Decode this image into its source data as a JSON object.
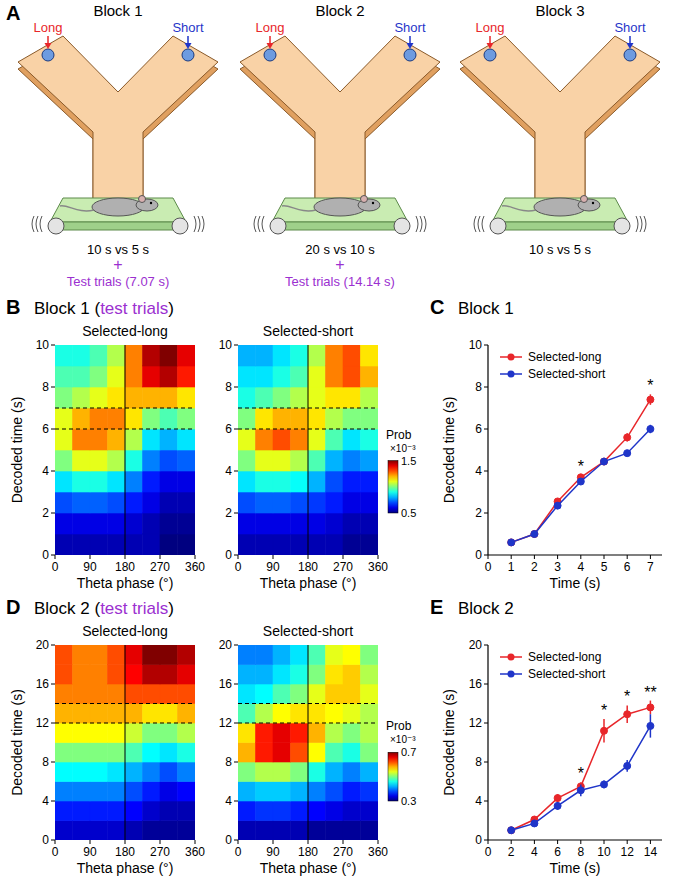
{
  "panels": [
    {
      "label": "A"
    },
    {
      "label": "B",
      "title_parts": [
        "Block 1 (",
        "test trials",
        ")"
      ]
    },
    {
      "label": "C",
      "title_parts": [
        "Block 1"
      ]
    },
    {
      "label": "D",
      "title_parts": [
        "Block 2 (",
        "test trials",
        ")"
      ]
    },
    {
      "label": "E",
      "title_parts": [
        "Block 2"
      ]
    }
  ],
  "diagram": {
    "blocks": [
      {
        "title": "Block 1",
        "left_label": "Long",
        "right_label": "Short",
        "condition": "10 s vs 5 s",
        "plus": "+",
        "test": "Test trials (7.07 s)"
      },
      {
        "title": "Block 2",
        "left_label": "Long",
        "right_label": "Short",
        "condition": "20 s vs 10 s",
        "plus": "+",
        "test": "Test trials (14.14 s)"
      },
      {
        "title": "Block 3",
        "left_label": "Long",
        "right_label": "Short",
        "condition": "10 s vs 5 s"
      }
    ]
  },
  "chart_data": [
    {
      "type": "heatmap",
      "title": "Selected-long",
      "xlabel": "Theta phase (°)",
      "ylabel": "Decoded time (s)",
      "x_bins": [
        0,
        45,
        90,
        135,
        180,
        225,
        270,
        315,
        360
      ],
      "y_bins": [
        0,
        1,
        2,
        3,
        4,
        5,
        6,
        7,
        8,
        9,
        10
      ],
      "xlim": [
        0,
        360
      ],
      "xticks": [
        0,
        90,
        180,
        270,
        360
      ],
      "ylim": [
        0,
        10
      ],
      "yticks": [
        0,
        2,
        4,
        6,
        8,
        10
      ],
      "zlim": [
        0.5,
        1.5
      ],
      "hlines": [
        6,
        7
      ],
      "vlines": [
        180
      ],
      "cells": [
        [
          0.55,
          0.55,
          0.55,
          0.55,
          0.55,
          0.55,
          0.5,
          0.5
        ],
        [
          0.6,
          0.6,
          0.6,
          0.6,
          0.58,
          0.55,
          0.52,
          0.52
        ],
        [
          0.7,
          0.72,
          0.72,
          0.7,
          0.65,
          0.6,
          0.55,
          0.55
        ],
        [
          0.85,
          0.9,
          0.9,
          0.85,
          0.75,
          0.65,
          0.6,
          0.6
        ],
        [
          1.0,
          1.1,
          1.1,
          1.05,
          0.9,
          0.75,
          0.7,
          0.72
        ],
        [
          1.1,
          1.25,
          1.25,
          1.2,
          1.05,
          0.85,
          0.8,
          0.85
        ],
        [
          1.1,
          1.2,
          1.25,
          1.25,
          1.15,
          1.0,
          0.95,
          1.0
        ],
        [
          1.0,
          1.05,
          1.1,
          1.15,
          1.2,
          1.2,
          1.2,
          1.15
        ],
        [
          0.95,
          0.95,
          1.0,
          1.1,
          1.25,
          1.4,
          1.45,
          1.35
        ],
        [
          0.9,
          0.9,
          0.95,
          1.05,
          1.25,
          1.45,
          1.5,
          1.4
        ]
      ]
    },
    {
      "type": "heatmap",
      "title": "Selected-short",
      "xlabel": "Theta phase (°)",
      "x_bins": [
        0,
        45,
        90,
        135,
        180,
        225,
        270,
        315,
        360
      ],
      "y_bins": [
        0,
        1,
        2,
        3,
        4,
        5,
        6,
        7,
        8,
        9,
        10
      ],
      "xlim": [
        0,
        360
      ],
      "xticks": [
        0,
        90,
        180,
        270,
        360
      ],
      "ylim": [
        0,
        10
      ],
      "yticks": [
        0,
        2,
        4,
        6,
        8,
        10
      ],
      "zlim": [
        0.5,
        1.5
      ],
      "colorbar": {
        "label": "Prob",
        "exponent": "×10⁻³",
        "ticks": [
          0.5,
          1.5
        ]
      },
      "hlines": [
        6,
        7
      ],
      "vlines": [
        180
      ],
      "cells": [
        [
          0.55,
          0.55,
          0.55,
          0.55,
          0.55,
          0.55,
          0.52,
          0.52
        ],
        [
          0.6,
          0.6,
          0.6,
          0.6,
          0.6,
          0.58,
          0.55,
          0.55
        ],
        [
          0.7,
          0.72,
          0.72,
          0.7,
          0.68,
          0.65,
          0.6,
          0.6
        ],
        [
          0.85,
          0.9,
          0.9,
          0.88,
          0.8,
          0.7,
          0.65,
          0.65
        ],
        [
          1.0,
          1.1,
          1.1,
          1.05,
          0.95,
          0.8,
          0.75,
          0.78
        ],
        [
          1.1,
          1.25,
          1.3,
          1.25,
          1.1,
          0.95,
          0.85,
          0.9
        ],
        [
          1.0,
          1.15,
          1.2,
          1.2,
          1.15,
          1.05,
          1.0,
          1.0
        ],
        [
          0.9,
          0.95,
          1.0,
          1.05,
          1.1,
          1.15,
          1.15,
          1.05
        ],
        [
          0.85,
          0.85,
          0.9,
          0.95,
          1.1,
          1.25,
          1.3,
          1.2
        ],
        [
          0.8,
          0.8,
          0.85,
          0.9,
          1.05,
          1.25,
          1.3,
          1.15
        ]
      ]
    },
    {
      "type": "line",
      "xlabel": "Time (s)",
      "ylabel": "Decoded time (s)",
      "x": [
        1,
        2,
        3,
        4,
        5,
        6,
        7
      ],
      "xlim": [
        0,
        7.5
      ],
      "xticks": [
        0,
        1,
        2,
        3,
        4,
        5,
        6,
        7
      ],
      "ylim": [
        0,
        10
      ],
      "yticks": [
        0,
        2,
        4,
        6,
        8,
        10
      ],
      "legend": "upper left",
      "series": [
        {
          "name": "Selected-long",
          "color": "#e8262a",
          "marker": "circle",
          "values": [
            0.6,
            1.0,
            2.55,
            3.7,
            4.45,
            5.6,
            7.4
          ],
          "error": [
            0.05,
            0.08,
            0.12,
            0.1,
            0.12,
            0.2,
            0.25
          ]
        },
        {
          "name": "Selected-short",
          "color": "#1f35c9",
          "marker": "circle",
          "values": [
            0.6,
            1.0,
            2.35,
            3.5,
            4.45,
            4.85,
            6.0
          ],
          "error": [
            0.05,
            0.08,
            0.12,
            0.1,
            0.1,
            0.1,
            0.2
          ]
        }
      ],
      "annotations": [
        {
          "x": 4,
          "text": "*"
        },
        {
          "x": 7,
          "text": "*"
        }
      ]
    },
    {
      "type": "heatmap",
      "title": "Selected-long",
      "xlabel": "Theta phase (°)",
      "ylabel": "Decoded time (s)",
      "x_bins": [
        0,
        45,
        90,
        135,
        180,
        225,
        270,
        315,
        360
      ],
      "y_bins": [
        0,
        2,
        4,
        6,
        8,
        10,
        12,
        14,
        16,
        18,
        20
      ],
      "xlim": [
        0,
        360
      ],
      "xticks": [
        0,
        90,
        180,
        270,
        360
      ],
      "ylim": [
        0,
        20
      ],
      "yticks": [
        0,
        4,
        8,
        12,
        16,
        20
      ],
      "zlim": [
        0.3,
        0.7
      ],
      "hlines": [
        12,
        14
      ],
      "vlines": [
        180
      ],
      "cells": [
        [
          0.33,
          0.33,
          0.33,
          0.33,
          0.32,
          0.31,
          0.31,
          0.31
        ],
        [
          0.36,
          0.36,
          0.36,
          0.36,
          0.35,
          0.33,
          0.32,
          0.32
        ],
        [
          0.4,
          0.4,
          0.4,
          0.4,
          0.38,
          0.36,
          0.34,
          0.35
        ],
        [
          0.45,
          0.45,
          0.45,
          0.44,
          0.42,
          0.4,
          0.38,
          0.4
        ],
        [
          0.5,
          0.5,
          0.5,
          0.5,
          0.48,
          0.45,
          0.44,
          0.46
        ],
        [
          0.55,
          0.55,
          0.55,
          0.55,
          0.53,
          0.5,
          0.5,
          0.52
        ],
        [
          0.58,
          0.58,
          0.58,
          0.58,
          0.58,
          0.56,
          0.56,
          0.58
        ],
        [
          0.6,
          0.6,
          0.6,
          0.6,
          0.62,
          0.62,
          0.62,
          0.62
        ],
        [
          0.62,
          0.6,
          0.6,
          0.62,
          0.65,
          0.68,
          0.68,
          0.66
        ],
        [
          0.62,
          0.6,
          0.6,
          0.62,
          0.66,
          0.7,
          0.7,
          0.68
        ]
      ]
    },
    {
      "type": "heatmap",
      "title": "Selected-short",
      "xlabel": "Theta phase (°)",
      "x_bins": [
        0,
        45,
        90,
        135,
        180,
        225,
        270,
        315,
        360
      ],
      "y_bins": [
        0,
        2,
        4,
        6,
        8,
        10,
        12,
        14,
        16,
        18,
        20
      ],
      "xlim": [
        0,
        360
      ],
      "xticks": [
        0,
        90,
        180,
        270,
        360
      ],
      "ylim": [
        0,
        20
      ],
      "yticks": [
        0,
        4,
        8,
        12,
        16,
        20
      ],
      "zlim": [
        0.3,
        0.7
      ],
      "colorbar": {
        "label": "Prob",
        "exponent": "×10⁻³",
        "ticks": [
          0.3,
          0.7
        ]
      },
      "hlines": [
        12,
        14
      ],
      "vlines": [
        180
      ],
      "cells": [
        [
          0.32,
          0.32,
          0.32,
          0.32,
          0.31,
          0.31,
          0.31,
          0.31
        ],
        [
          0.36,
          0.37,
          0.37,
          0.36,
          0.35,
          0.34,
          0.33,
          0.33
        ],
        [
          0.42,
          0.43,
          0.43,
          0.42,
          0.4,
          0.38,
          0.36,
          0.37
        ],
        [
          0.5,
          0.52,
          0.52,
          0.5,
          0.46,
          0.42,
          0.4,
          0.42
        ],
        [
          0.58,
          0.64,
          0.66,
          0.62,
          0.55,
          0.48,
          0.46,
          0.5
        ],
        [
          0.56,
          0.64,
          0.66,
          0.64,
          0.58,
          0.52,
          0.5,
          0.52
        ],
        [
          0.48,
          0.52,
          0.55,
          0.56,
          0.56,
          0.55,
          0.54,
          0.52
        ],
        [
          0.44,
          0.45,
          0.48,
          0.5,
          0.54,
          0.57,
          0.57,
          0.54
        ],
        [
          0.42,
          0.42,
          0.44,
          0.46,
          0.5,
          0.56,
          0.57,
          0.52
        ],
        [
          0.4,
          0.4,
          0.42,
          0.44,
          0.48,
          0.54,
          0.55,
          0.5
        ]
      ]
    },
    {
      "type": "line",
      "xlabel": "Time (s)",
      "ylabel": "Decoded time (s)",
      "x": [
        2,
        4,
        6,
        8,
        10,
        12,
        14
      ],
      "xlim": [
        0,
        15
      ],
      "xticks": [
        0,
        2,
        4,
        6,
        8,
        10,
        12,
        14
      ],
      "ylim": [
        0,
        20
      ],
      "yticks": [
        0,
        4,
        8,
        12,
        16,
        20
      ],
      "legend": "upper left",
      "series": [
        {
          "name": "Selected-long",
          "color": "#e8262a",
          "marker": "circle",
          "values": [
            1.0,
            2.1,
            4.3,
            5.5,
            11.2,
            12.9,
            13.6
          ],
          "error": [
            0.2,
            0.3,
            0.4,
            0.4,
            1.2,
            0.9,
            0.7
          ]
        },
        {
          "name": "Selected-short",
          "color": "#1f35c9",
          "marker": "circle",
          "values": [
            1.0,
            1.7,
            3.5,
            5.1,
            5.7,
            7.6,
            11.7
          ],
          "error": [
            0.2,
            0.3,
            0.4,
            0.6,
            0.4,
            0.6,
            1.2
          ]
        }
      ],
      "annotations": [
        {
          "x": 8,
          "text": "*"
        },
        {
          "x": 10,
          "text": "*"
        },
        {
          "x": 12,
          "text": "*"
        },
        {
          "x": 14,
          "text": "**"
        }
      ]
    }
  ]
}
